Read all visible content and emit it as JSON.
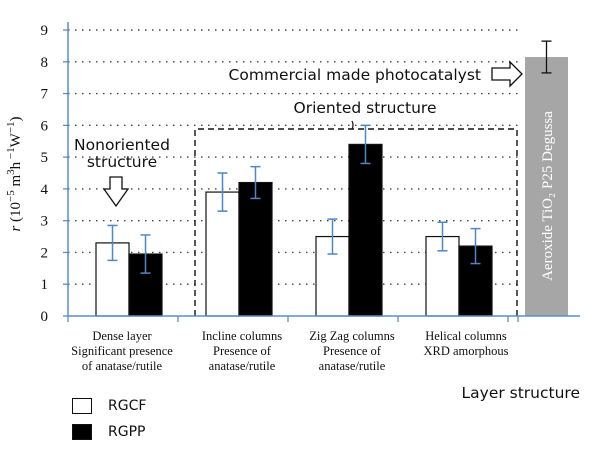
{
  "chart_data": {
    "type": "bar",
    "categories": [
      [
        "Dense layer",
        "Significant presence",
        "of anatase/rutile"
      ],
      [
        "Incline columns",
        "Presence of",
        "anatase/rutile"
      ],
      [
        "Zig Zag columns",
        "Presence of",
        "anatase/rutile"
      ],
      [
        "Helical columns",
        "XRD amorphous"
      ]
    ],
    "series": [
      {
        "name": "RGCF",
        "color": "#ffffff",
        "values": [
          2.3,
          3.9,
          2.5,
          2.5
        ],
        "errors": [
          0.55,
          0.6,
          0.55,
          0.45
        ]
      },
      {
        "name": "RGPP",
        "color": "#000000",
        "values": [
          1.95,
          4.2,
          5.4,
          2.2
        ],
        "errors": [
          0.6,
          0.5,
          0.6,
          0.55
        ]
      }
    ],
    "reference": {
      "label": "Aeroxide TiO₂ P25 Degussa",
      "value": 8.15,
      "error": 0.5,
      "color": "#a6a6a6"
    },
    "ylim": [
      0,
      9
    ],
    "yticks": [
      0,
      1,
      2,
      3,
      4,
      5,
      6,
      7,
      8,
      9
    ],
    "ylabel": {
      "prefix": "r",
      "units": [
        "(10",
        "−5",
        " m",
        "3",
        "h",
        " −1",
        "W",
        "−1",
        ")"
      ]
    },
    "xlabel": "Layer structure",
    "grid": "horizontal dotted",
    "annotations": {
      "commercial": "Commercial made photocatalyst",
      "oriented": "Oriented structure",
      "nonoriented": [
        "Nonoriented",
        "structure"
      ]
    },
    "error_bar_color": "#4f86c6",
    "axis_color": "#5b8ec9"
  },
  "legend": [
    {
      "label": "RGCF",
      "color": "#ffffff"
    },
    {
      "label": "RGPP",
      "color": "#000000"
    }
  ]
}
